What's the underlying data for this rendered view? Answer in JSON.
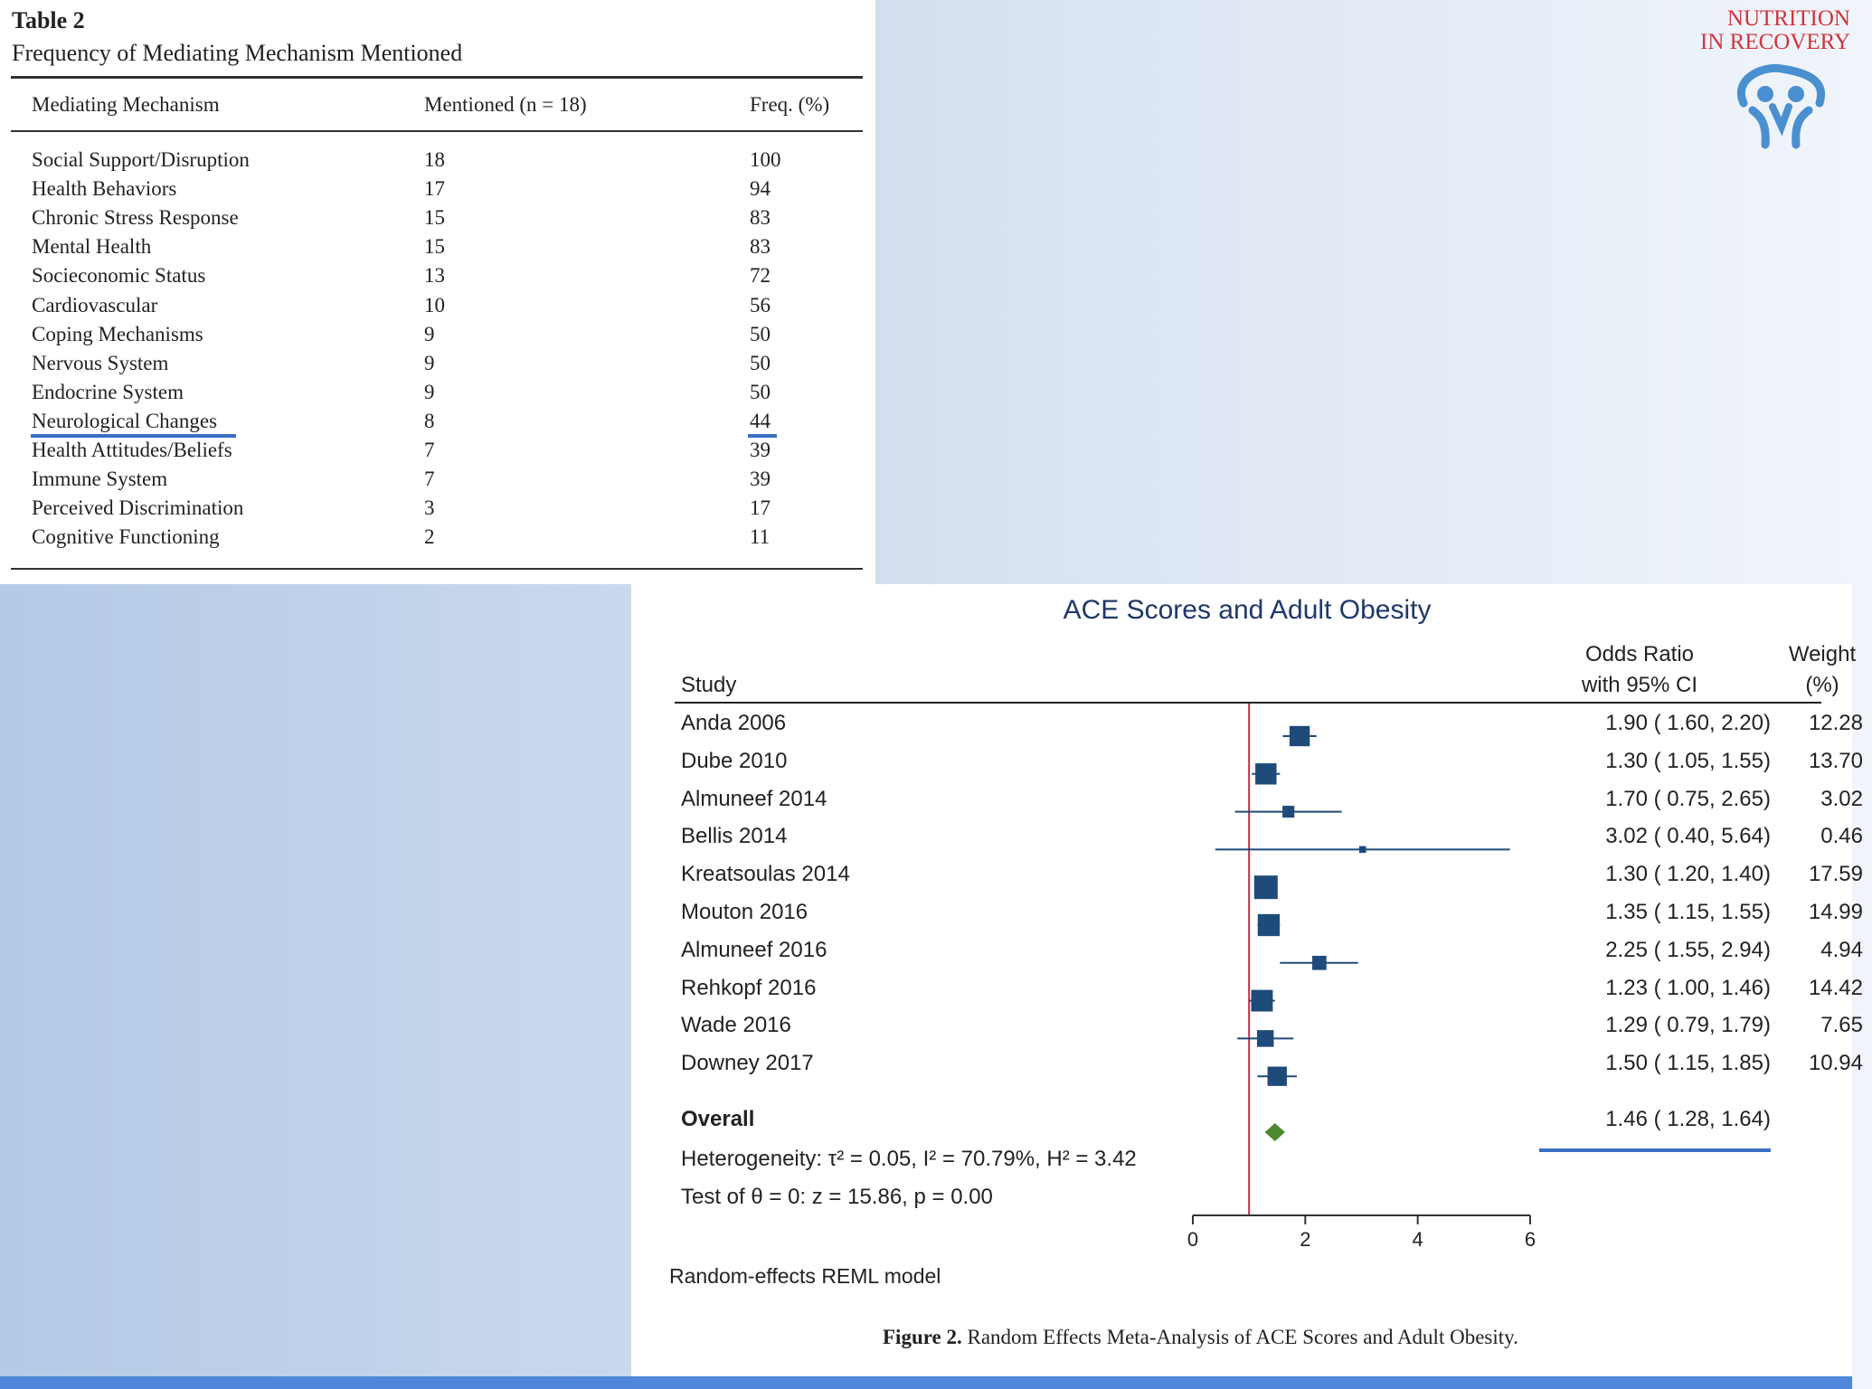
{
  "table": {
    "label": "Table 2",
    "caption": "Frequency of Mediating Mechanism Mentioned",
    "headers": [
      "Mediating Mechanism",
      "Mentioned (n = 18)",
      "Freq. (%)"
    ],
    "rows": [
      [
        "Social Support/Disruption",
        "18",
        "100"
      ],
      [
        "Health Behaviors",
        "17",
        "94"
      ],
      [
        "Chronic Stress Response",
        "15",
        "83"
      ],
      [
        "Mental Health",
        "15",
        "83"
      ],
      [
        "Socieconomic Status",
        "13",
        "72"
      ],
      [
        "Cardiovascular",
        "10",
        "56"
      ],
      [
        "Coping Mechanisms",
        "9",
        "50"
      ],
      [
        "Nervous System",
        "9",
        "50"
      ],
      [
        "Endocrine System",
        "9",
        "50"
      ],
      [
        "Neurological Changes",
        "8",
        "44"
      ],
      [
        "Health Attitudes/Beliefs",
        "7",
        "39"
      ],
      [
        "Immune System",
        "7",
        "39"
      ],
      [
        "Perceived Discrimination",
        "3",
        "17"
      ],
      [
        "Cognitive Functioning",
        "2",
        "11"
      ]
    ]
  },
  "logo": {
    "line1": "NUTRITION",
    "line2": "IN RECOVERY"
  },
  "chart_data": {
    "type": "scatter",
    "subtype": "forest-plot",
    "title": "ACE Scores and Adult Obesity",
    "columns": {
      "study": "Study",
      "or_line1": "Odds Ratio",
      "or_line2": "with 95% CI",
      "weight_line1": "Weight",
      "weight_line2": "(%)"
    },
    "studies": [
      {
        "name": "Anda 2006",
        "or": 1.9,
        "lo": 1.6,
        "hi": 2.2,
        "weight": 12.28,
        "ci_text": "1.90 (  1.60,  2.20)",
        "weight_text": "12.28"
      },
      {
        "name": "Dube 2010",
        "or": 1.3,
        "lo": 1.05,
        "hi": 1.55,
        "weight": 13.7,
        "ci_text": "1.30 (  1.05,  1.55)",
        "weight_text": "13.70"
      },
      {
        "name": "Almuneef 2014",
        "or": 1.7,
        "lo": 0.75,
        "hi": 2.65,
        "weight": 3.02,
        "ci_text": "1.70 (  0.75,  2.65)",
        "weight_text": "3.02"
      },
      {
        "name": "Bellis 2014",
        "or": 3.02,
        "lo": 0.4,
        "hi": 5.64,
        "weight": 0.46,
        "ci_text": "3.02 (  0.40,  5.64)",
        "weight_text": "0.46"
      },
      {
        "name": "Kreatsoulas 2014",
        "or": 1.3,
        "lo": 1.2,
        "hi": 1.4,
        "weight": 17.59,
        "ci_text": "1.30 (  1.20,  1.40)",
        "weight_text": "17.59"
      },
      {
        "name": "Mouton 2016",
        "or": 1.35,
        "lo": 1.15,
        "hi": 1.55,
        "weight": 14.99,
        "ci_text": "1.35 (  1.15,  1.55)",
        "weight_text": "14.99"
      },
      {
        "name": "Almuneef 2016",
        "or": 2.25,
        "lo": 1.55,
        "hi": 2.94,
        "weight": 4.94,
        "ci_text": "2.25 (  1.55,  2.94)",
        "weight_text": "4.94"
      },
      {
        "name": "Rehkopf 2016",
        "or": 1.23,
        "lo": 1.0,
        "hi": 1.46,
        "weight": 14.42,
        "ci_text": "1.23 (  1.00,  1.46)",
        "weight_text": "14.42"
      },
      {
        "name": "Wade 2016",
        "or": 1.29,
        "lo": 0.79,
        "hi": 1.79,
        "weight": 7.65,
        "ci_text": "1.29 (  0.79,  1.79)",
        "weight_text": "7.65"
      },
      {
        "name": "Downey 2017",
        "or": 1.5,
        "lo": 1.15,
        "hi": 1.85,
        "weight": 10.94,
        "ci_text": "1.50 (  1.15,  1.85)",
        "weight_text": "10.94"
      }
    ],
    "overall": {
      "label": "Overall",
      "or": 1.46,
      "lo": 1.28,
      "hi": 1.64,
      "ci_text": "1.46 (  1.28,  1.64)"
    },
    "heterogeneity": "Heterogeneity: τ² = 0.05, I² = 70.79%, H² = 3.42",
    "test": "Test of θ = 0: z = 15.86, p = 0.00",
    "reference_line": 1,
    "xlim": [
      0,
      6
    ],
    "xticks": [
      0,
      2,
      4,
      6
    ],
    "model_note": "Random-effects REML model",
    "colors": {
      "marker": "#1f4b7a",
      "overall": "#4b8a2e",
      "reference": "#c0304a",
      "highlight": "#3a6fc4"
    }
  },
  "figure_caption": {
    "label": "Figure 2.",
    "text": "Random Effects Meta-Analysis of ACE Scores and Adult Obesity."
  }
}
